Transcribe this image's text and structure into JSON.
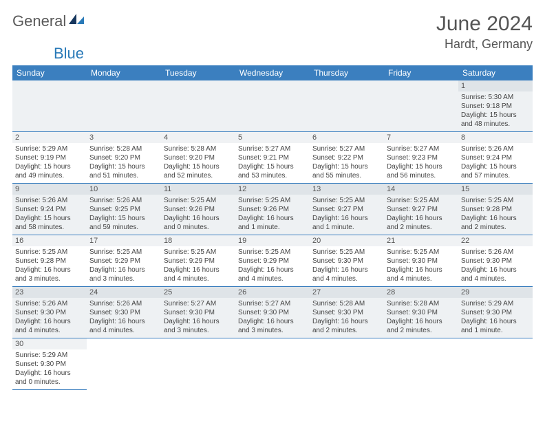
{
  "logo": {
    "text1": "General",
    "text2": "Blue"
  },
  "title": "June 2024",
  "location": "Hardt, Germany",
  "header_bg": "#3b7fbf",
  "weekdays": [
    "Sunday",
    "Monday",
    "Tuesday",
    "Wednesday",
    "Thursday",
    "Friday",
    "Saturday"
  ],
  "weeks": [
    {
      "row_class": "row-odd",
      "days": [
        null,
        null,
        null,
        null,
        null,
        null,
        {
          "num": "1",
          "sunrise": "Sunrise: 5:30 AM",
          "sunset": "Sunset: 9:18 PM",
          "daylight": "Daylight: 15 hours and 48 minutes."
        }
      ]
    },
    {
      "row_class": "row-even",
      "days": [
        {
          "num": "2",
          "sunrise": "Sunrise: 5:29 AM",
          "sunset": "Sunset: 9:19 PM",
          "daylight": "Daylight: 15 hours and 49 minutes."
        },
        {
          "num": "3",
          "sunrise": "Sunrise: 5:28 AM",
          "sunset": "Sunset: 9:20 PM",
          "daylight": "Daylight: 15 hours and 51 minutes."
        },
        {
          "num": "4",
          "sunrise": "Sunrise: 5:28 AM",
          "sunset": "Sunset: 9:20 PM",
          "daylight": "Daylight: 15 hours and 52 minutes."
        },
        {
          "num": "5",
          "sunrise": "Sunrise: 5:27 AM",
          "sunset": "Sunset: 9:21 PM",
          "daylight": "Daylight: 15 hours and 53 minutes."
        },
        {
          "num": "6",
          "sunrise": "Sunrise: 5:27 AM",
          "sunset": "Sunset: 9:22 PM",
          "daylight": "Daylight: 15 hours and 55 minutes."
        },
        {
          "num": "7",
          "sunrise": "Sunrise: 5:27 AM",
          "sunset": "Sunset: 9:23 PM",
          "daylight": "Daylight: 15 hours and 56 minutes."
        },
        {
          "num": "8",
          "sunrise": "Sunrise: 5:26 AM",
          "sunset": "Sunset: 9:24 PM",
          "daylight": "Daylight: 15 hours and 57 minutes."
        }
      ]
    },
    {
      "row_class": "row-odd",
      "days": [
        {
          "num": "9",
          "sunrise": "Sunrise: 5:26 AM",
          "sunset": "Sunset: 9:24 PM",
          "daylight": "Daylight: 15 hours and 58 minutes."
        },
        {
          "num": "10",
          "sunrise": "Sunrise: 5:26 AM",
          "sunset": "Sunset: 9:25 PM",
          "daylight": "Daylight: 15 hours and 59 minutes."
        },
        {
          "num": "11",
          "sunrise": "Sunrise: 5:25 AM",
          "sunset": "Sunset: 9:26 PM",
          "daylight": "Daylight: 16 hours and 0 minutes."
        },
        {
          "num": "12",
          "sunrise": "Sunrise: 5:25 AM",
          "sunset": "Sunset: 9:26 PM",
          "daylight": "Daylight: 16 hours and 1 minute."
        },
        {
          "num": "13",
          "sunrise": "Sunrise: 5:25 AM",
          "sunset": "Sunset: 9:27 PM",
          "daylight": "Daylight: 16 hours and 1 minute."
        },
        {
          "num": "14",
          "sunrise": "Sunrise: 5:25 AM",
          "sunset": "Sunset: 9:27 PM",
          "daylight": "Daylight: 16 hours and 2 minutes."
        },
        {
          "num": "15",
          "sunrise": "Sunrise: 5:25 AM",
          "sunset": "Sunset: 9:28 PM",
          "daylight": "Daylight: 16 hours and 2 minutes."
        }
      ]
    },
    {
      "row_class": "row-even",
      "days": [
        {
          "num": "16",
          "sunrise": "Sunrise: 5:25 AM",
          "sunset": "Sunset: 9:28 PM",
          "daylight": "Daylight: 16 hours and 3 minutes."
        },
        {
          "num": "17",
          "sunrise": "Sunrise: 5:25 AM",
          "sunset": "Sunset: 9:29 PM",
          "daylight": "Daylight: 16 hours and 3 minutes."
        },
        {
          "num": "18",
          "sunrise": "Sunrise: 5:25 AM",
          "sunset": "Sunset: 9:29 PM",
          "daylight": "Daylight: 16 hours and 4 minutes."
        },
        {
          "num": "19",
          "sunrise": "Sunrise: 5:25 AM",
          "sunset": "Sunset: 9:29 PM",
          "daylight": "Daylight: 16 hours and 4 minutes."
        },
        {
          "num": "20",
          "sunrise": "Sunrise: 5:25 AM",
          "sunset": "Sunset: 9:30 PM",
          "daylight": "Daylight: 16 hours and 4 minutes."
        },
        {
          "num": "21",
          "sunrise": "Sunrise: 5:25 AM",
          "sunset": "Sunset: 9:30 PM",
          "daylight": "Daylight: 16 hours and 4 minutes."
        },
        {
          "num": "22",
          "sunrise": "Sunrise: 5:26 AM",
          "sunset": "Sunset: 9:30 PM",
          "daylight": "Daylight: 16 hours and 4 minutes."
        }
      ]
    },
    {
      "row_class": "row-odd",
      "days": [
        {
          "num": "23",
          "sunrise": "Sunrise: 5:26 AM",
          "sunset": "Sunset: 9:30 PM",
          "daylight": "Daylight: 16 hours and 4 minutes."
        },
        {
          "num": "24",
          "sunrise": "Sunrise: 5:26 AM",
          "sunset": "Sunset: 9:30 PM",
          "daylight": "Daylight: 16 hours and 4 minutes."
        },
        {
          "num": "25",
          "sunrise": "Sunrise: 5:27 AM",
          "sunset": "Sunset: 9:30 PM",
          "daylight": "Daylight: 16 hours and 3 minutes."
        },
        {
          "num": "26",
          "sunrise": "Sunrise: 5:27 AM",
          "sunset": "Sunset: 9:30 PM",
          "daylight": "Daylight: 16 hours and 3 minutes."
        },
        {
          "num": "27",
          "sunrise": "Sunrise: 5:28 AM",
          "sunset": "Sunset: 9:30 PM",
          "daylight": "Daylight: 16 hours and 2 minutes."
        },
        {
          "num": "28",
          "sunrise": "Sunrise: 5:28 AM",
          "sunset": "Sunset: 9:30 PM",
          "daylight": "Daylight: 16 hours and 2 minutes."
        },
        {
          "num": "29",
          "sunrise": "Sunrise: 5:29 AM",
          "sunset": "Sunset: 9:30 PM",
          "daylight": "Daylight: 16 hours and 1 minute."
        }
      ]
    },
    {
      "row_class": "row-even",
      "days": [
        {
          "num": "30",
          "sunrise": "Sunrise: 5:29 AM",
          "sunset": "Sunset: 9:30 PM",
          "daylight": "Daylight: 16 hours and 0 minutes."
        },
        null,
        null,
        null,
        null,
        null,
        null
      ]
    }
  ]
}
